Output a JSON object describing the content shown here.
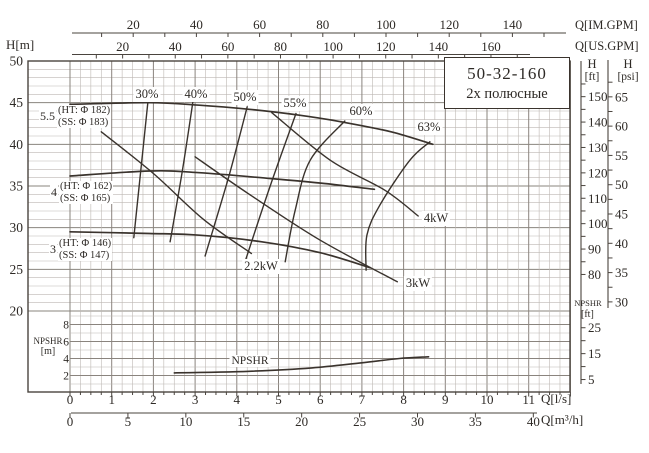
{
  "title": "50-32-160",
  "subtitle": "2х  полюсные",
  "labels": {
    "q_im": "Q[IM.GPM]",
    "q_us": "Q[US.GPM]",
    "h_m": "H[m]",
    "q_ls": "Q[l/s]",
    "q_m3h": "Q[m³/h]",
    "h_ft_h": "H",
    "h_ft_unit": "[ft]",
    "h_psi_h": "H",
    "h_psi_unit": "[psi]",
    "npshr_right_1": "NPSHR",
    "npshr_right_2": "[ft]",
    "npshr_left_1": "NPSHR",
    "npshr_left_2": "[m]",
    "npshr_curve": "NPSHR"
  },
  "colors": {
    "curve": "#3a332d",
    "grid_minor": "#bdb8b3",
    "grid_major": "#8a847e",
    "frame": "#4a443e",
    "text": "#2e2a26"
  },
  "chart_data": {
    "type": "line",
    "title": "50-32-160",
    "subtitle": "2х полюсные",
    "x_axes": {
      "im_gpm": {
        "label": "Q[IM.GPM]",
        "labeled": [
          20,
          40,
          60,
          80,
          100,
          120,
          140
        ],
        "tick_min": 10,
        "tick_max": 150,
        "tick_step": 10
      },
      "us_gpm": {
        "label": "Q[US.GPM]",
        "labeled": [
          20,
          40,
          60,
          80,
          100,
          120,
          140,
          160
        ],
        "tick_min": 10,
        "tick_max": 170,
        "tick_step": 10
      },
      "l_s": {
        "label": "Q[l/s]",
        "labeled": [
          0,
          1,
          2,
          3,
          4,
          5,
          6,
          7,
          8,
          9,
          10,
          11
        ],
        "range": [
          0,
          12
        ]
      },
      "m3_h": {
        "label": "Q[m³/h]",
        "labeled": [
          0,
          5,
          10,
          15,
          20,
          25,
          30,
          35,
          40
        ],
        "tick_min": 0,
        "tick_max": 40,
        "tick_step": 5
      }
    },
    "y_axes": {
      "h_m": {
        "label": "H[m]",
        "labeled": [
          50,
          45,
          40,
          35,
          30,
          25,
          20
        ],
        "range": [
          20,
          50
        ],
        "minor_step": 1
      },
      "h_ft": {
        "label": "H [ft]",
        "labeled": [
          150,
          140,
          130,
          120,
          110,
          100,
          90,
          80
        ],
        "tick_min": 80,
        "tick_max": 155,
        "tick_step": 5
      },
      "h_psi": {
        "label": "H [psi]",
        "labeled": [
          65,
          60,
          55,
          50,
          45,
          40,
          35,
          30
        ],
        "tick_min": 30,
        "tick_max": 67.5,
        "tick_step": 2.5
      },
      "npshr_m": {
        "label": "NPSHR [m]",
        "labeled": [
          8,
          6,
          4,
          2
        ]
      },
      "npshr_ft": {
        "label": "NPSHR [ft]",
        "labeled": [
          25,
          15,
          5
        ],
        "tick_min": 5,
        "tick_max": 25,
        "tick_step": 5
      }
    },
    "head_curves": [
      {
        "name": "5.5",
        "ht": "(HT: Φ 182)",
        "ss": "(SS: Φ 183)",
        "points": [
          [
            0,
            44.8
          ],
          [
            1.9,
            45.0
          ],
          [
            3.1,
            44.7
          ],
          [
            4.3,
            44.2
          ],
          [
            5.5,
            43.5
          ],
          [
            6.5,
            42.7
          ],
          [
            7.7,
            41.5
          ],
          [
            8.7,
            40.0
          ]
        ]
      },
      {
        "name": "4",
        "ht": "(HT: Φ 162)",
        "ss": "(SS: Φ 165)",
        "points": [
          [
            0,
            36.2
          ],
          [
            1.9,
            36.8
          ],
          [
            3.1,
            36.6
          ],
          [
            4.8,
            35.9
          ],
          [
            6.1,
            35.3
          ],
          [
            7.3,
            34.6
          ]
        ]
      },
      {
        "name": "3",
        "ht": "(HT: Φ 146)",
        "ss": "(SS: Φ 147)",
        "points": [
          [
            0,
            29.5
          ],
          [
            1.9,
            29.3
          ],
          [
            3.1,
            29.1
          ],
          [
            4.6,
            28.3
          ],
          [
            6.0,
            27.0
          ],
          [
            7.2,
            25.2
          ]
        ]
      }
    ],
    "efficiency_lines": [
      {
        "label": "30%",
        "points": [
          [
            1.87,
            45.2
          ],
          [
            1.7,
            37.0
          ],
          [
            1.53,
            28.8
          ]
        ]
      },
      {
        "label": "40%",
        "points": [
          [
            2.95,
            45.2
          ],
          [
            2.7,
            37.0
          ],
          [
            2.4,
            28.3
          ]
        ]
      },
      {
        "label": "50%",
        "points": [
          [
            4.25,
            44.5
          ],
          [
            3.8,
            36.0
          ],
          [
            3.24,
            26.6
          ]
        ]
      },
      {
        "label": "55%",
        "points": [
          [
            5.42,
            43.7
          ],
          [
            4.8,
            35.0
          ],
          [
            4.15,
            25.2
          ]
        ]
      },
      {
        "label": "60%",
        "points": [
          [
            6.59,
            42.8
          ],
          [
            5.76,
            38.1
          ],
          [
            5.4,
            32.1
          ],
          [
            5.16,
            25.9
          ]
        ]
      },
      {
        "label": "63%",
        "points": [
          [
            8.63,
            40.3
          ],
          [
            8.15,
            38.1
          ],
          [
            7.43,
            32.7
          ],
          [
            7.12,
            29.1
          ],
          [
            7.1,
            24.9
          ]
        ]
      }
    ],
    "power_lines": [
      {
        "label": "2.2kW",
        "points": [
          [
            0.75,
            41.5
          ],
          [
            2.0,
            36.5
          ],
          [
            3.2,
            31.0
          ],
          [
            4.35,
            26.9
          ]
        ]
      },
      {
        "label": "3kW",
        "points": [
          [
            3.0,
            38.5
          ],
          [
            4.3,
            34.0
          ],
          [
            6.0,
            28.5
          ],
          [
            7.85,
            23.5
          ]
        ]
      },
      {
        "label": "4kW",
        "points": [
          [
            4.84,
            43.8
          ],
          [
            6.24,
            38.1
          ],
          [
            7.55,
            34.5
          ],
          [
            8.35,
            31.4
          ]
        ]
      }
    ],
    "npshr_curve": {
      "label": "NPSHR",
      "points": [
        [
          2.5,
          2.3
        ],
        [
          4.3,
          2.5
        ],
        [
          5.8,
          2.9
        ],
        [
          7.0,
          3.5
        ],
        [
          7.9,
          4.0
        ],
        [
          8.6,
          4.2
        ]
      ]
    }
  }
}
